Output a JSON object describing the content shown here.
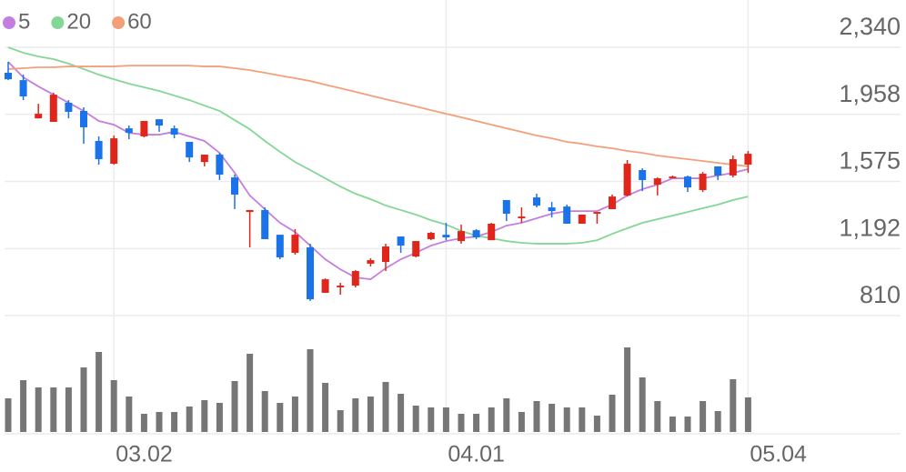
{
  "chart_data": {
    "type": "candlestick",
    "categories": [
      null,
      null,
      null,
      null,
      null,
      null,
      null,
      "03.02",
      null,
      null,
      null,
      null,
      null,
      null,
      null,
      null,
      null,
      null,
      null,
      null,
      null,
      null,
      null,
      null,
      null,
      null,
      null,
      null,
      null,
      "04.01",
      null,
      null,
      null,
      null,
      null,
      null,
      null,
      null,
      null,
      null,
      null,
      null,
      null,
      null,
      null,
      null,
      null,
      null,
      null,
      "05.04"
    ],
    "open": [
      2195,
      2153,
      1935,
      1915,
      2024,
      1977,
      1806,
      1676,
      1878,
      1832,
      1930,
      1878,
      1801,
      1686,
      1728,
      1598,
      1401,
      1412,
      1271,
      1168,
      1199,
      940,
      971,
      981,
      1106,
      1116,
      1261,
      1147,
      1246,
      1271,
      1235,
      1297,
      1240,
      1469,
      1365,
      1484,
      1427,
      1432,
      1334,
      1391,
      1417,
      1495,
      1640,
      1557,
      1593,
      1603,
      1526,
      1661,
      1609,
      1671
    ],
    "high": [
      2257,
      2184,
      2018,
      2081,
      2039,
      1998,
      1832,
      1837,
      1894,
      1920,
      1930,
      1894,
      1801,
      1728,
      1738,
      1614,
      1412,
      1427,
      1271,
      1303,
      1220,
      1022,
      997,
      1069,
      1137,
      1220,
      1261,
      1235,
      1287,
      1339,
      1329,
      1303,
      1339,
      1469,
      1427,
      1505,
      1458,
      1443,
      1386,
      1401,
      1500,
      1697,
      1650,
      1598,
      1609,
      1609,
      1629,
      1661,
      1723,
      1749
    ],
    "low": [
      2153,
      2039,
      1935,
      1915,
      1935,
      1790,
      1671,
      1671,
      1816,
      1826,
      1858,
      1821,
      1686,
      1661,
      1583,
      1417,
      1199,
      1246,
      1131,
      1157,
      893,
      940,
      929,
      971,
      1090,
      1064,
      1168,
      1142,
      1240,
      1240,
      1220,
      1246,
      1240,
      1349,
      1339,
      1427,
      1370,
      1334,
      1334,
      1334,
      1417,
      1489,
      1520,
      1495,
      1593,
      1515,
      1515,
      1583,
      1598,
      1624
    ],
    "close": [
      2158,
      2060,
      1961,
      2070,
      1972,
      1884,
      1702,
      1821,
      1852,
      1920,
      1894,
      1842,
      1712,
      1728,
      1614,
      1500,
      1412,
      1246,
      1142,
      1271,
      903,
      1017,
      981,
      1064,
      1126,
      1204,
      1209,
      1235,
      1282,
      1256,
      1292,
      1256,
      1334,
      1391,
      1375,
      1437,
      1406,
      1334,
      1386,
      1401,
      1489,
      1676,
      1583,
      1593,
      1603,
      1541,
      1619,
      1609,
      1702,
      1733
    ],
    "up_color": "#e0261a",
    "down_color": "#1a73e8",
    "ylim": [
      810,
      2610
    ],
    "yticks": [
      {
        "value": 2340,
        "label": "2,340"
      },
      {
        "value": 1958,
        "label": "1,958"
      },
      {
        "value": 1575,
        "label": "1,575"
      },
      {
        "value": 1192,
        "label": "1,192"
      },
      {
        "value": 810,
        "label": "810"
      }
    ],
    "grid": true,
    "series": [
      {
        "name": "5",
        "color": "#c47ee0",
        "values": [
          2257,
          2169,
          2117,
          2070,
          2024,
          1977,
          1920,
          1899,
          1852,
          1842,
          1842,
          1858,
          1832,
          1806,
          1738,
          1624,
          1495,
          1417,
          1339,
          1287,
          1209,
          1131,
          1074,
          1027,
          1017,
          1080,
          1131,
          1168,
          1209,
          1235,
          1251,
          1261,
          1287,
          1323,
          1339,
          1365,
          1391,
          1406,
          1406,
          1406,
          1443,
          1495,
          1531,
          1557,
          1593,
          1593,
          1593,
          1609,
          1624,
          1645
        ]
      },
      {
        "name": "20",
        "color": "#84d696",
        "values": [
          2340,
          2309,
          2288,
          2273,
          2247,
          2216,
          2184,
          2158,
          2133,
          2112,
          2091,
          2065,
          2039,
          2008,
          1977,
          1925,
          1873,
          1806,
          1744,
          1686,
          1640,
          1593,
          1546,
          1505,
          1474,
          1438,
          1412,
          1386,
          1354,
          1329,
          1292,
          1266,
          1251,
          1235,
          1225,
          1220,
          1220,
          1220,
          1225,
          1240,
          1276,
          1308,
          1339,
          1360,
          1380,
          1401,
          1422,
          1443,
          1469,
          1489
        ]
      },
      {
        "name": "60",
        "color": "#f3a07a",
        "values": [
          2216,
          2221,
          2226,
          2226,
          2231,
          2231,
          2231,
          2231,
          2236,
          2236,
          2236,
          2236,
          2236,
          2231,
          2231,
          2221,
          2210,
          2195,
          2179,
          2164,
          2148,
          2127,
          2107,
          2086,
          2065,
          2044,
          2024,
          2003,
          1982,
          1961,
          1941,
          1920,
          1899,
          1878,
          1858,
          1837,
          1821,
          1801,
          1790,
          1775,
          1764,
          1749,
          1738,
          1723,
          1712,
          1702,
          1692,
          1681,
          1671,
          1661
        ]
      }
    ],
    "volume": {
      "color": "#767676",
      "ylim": [
        0,
        100
      ],
      "values": [
        37,
        57,
        49,
        49,
        49,
        71,
        88,
        57,
        39,
        20,
        22,
        22,
        28,
        35,
        32,
        56,
        86,
        45,
        32,
        39,
        91,
        54,
        24,
        37,
        39,
        55,
        42,
        29,
        27,
        27,
        20,
        20,
        27,
        37,
        22,
        34,
        31,
        27,
        27,
        18,
        41,
        93,
        60,
        34,
        17,
        17,
        34,
        23,
        58,
        38
      ]
    }
  }
}
